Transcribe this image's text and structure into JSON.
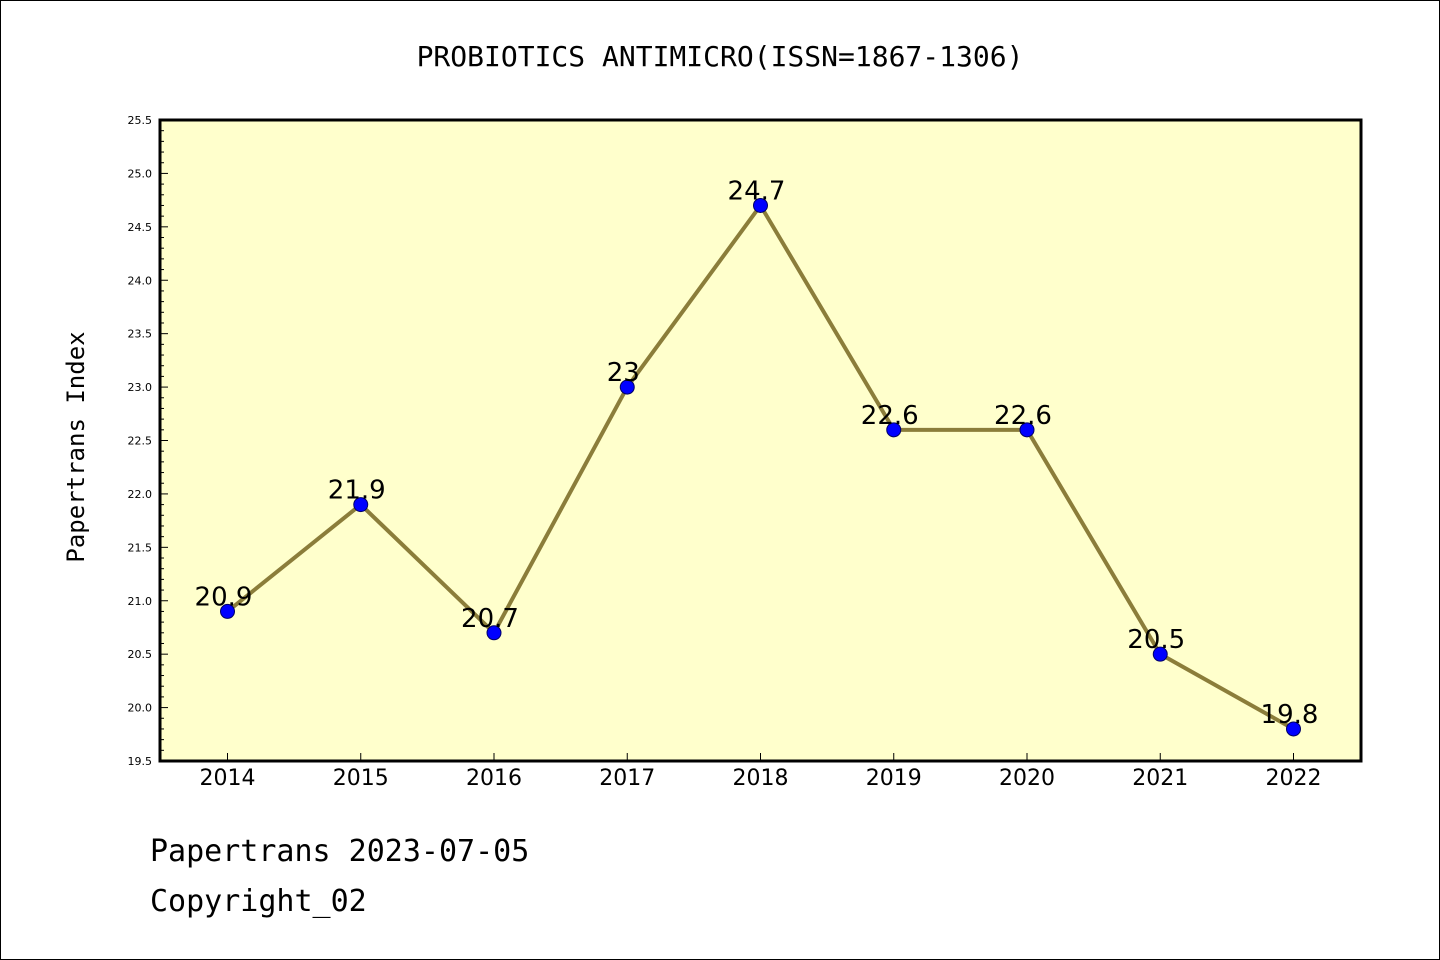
{
  "chart_data": {
    "type": "line",
    "title": "PROBIOTICS ANTIMICRO(ISSN=1867-1306)",
    "xlabel": "",
    "ylabel": "Papertrans Index",
    "categories": [
      "2014",
      "2015",
      "2016",
      "2017",
      "2018",
      "2019",
      "2020",
      "2021",
      "2022"
    ],
    "values": [
      20.9,
      21.9,
      20.7,
      23,
      24.7,
      22.6,
      22.6,
      20.5,
      19.8
    ],
    "data_labels": [
      "20.9",
      "21.9",
      "20.7",
      "23",
      "24.7",
      "22.6",
      "22.6",
      "20.5",
      "19.8"
    ],
    "ylim": [
      19.5,
      25.5
    ],
    "yticks": [
      "19.5",
      "20.0",
      "20.5",
      "21.0",
      "21.5",
      "22.0",
      "22.5",
      "23.0",
      "23.5",
      "24.0",
      "24.5",
      "25.0",
      "25.5"
    ],
    "grid": false,
    "legend": "none",
    "colors": {
      "plot_background": "#ffffcc",
      "line": "#8b7d3a",
      "marker": "#0000ff",
      "marker_edge": "#000066"
    }
  },
  "footer": {
    "line1": "Papertrans 2023-07-05",
    "line2": "Copyright_02"
  }
}
